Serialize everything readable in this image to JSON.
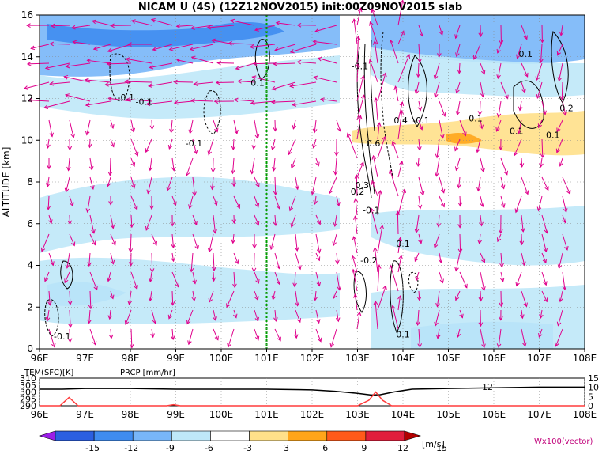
{
  "title": "NICAM U (4S) (12Z12NOV2015) init:00Z09NOV2015 slab",
  "colors": {
    "vector": "#e0008c",
    "marker_line": "#00a000",
    "temp_line": "#000000",
    "precip_line": "#ff3b3b"
  },
  "chart_data": [
    {
      "type": "heatmap",
      "title": "NICAM U (4S) (12Z12NOV2015) init:00Z09NOV2015 slab",
      "xlabel": "",
      "ylabel": "ALTITUDE [km]",
      "xlim": [
        96,
        108
      ],
      "ylim": [
        0,
        16
      ],
      "x_ticks": [
        "96E",
        "97E",
        "98E",
        "99E",
        "100E",
        "101E",
        "102E",
        "103E",
        "104E",
        "105E",
        "106E",
        "107E",
        "108E"
      ],
      "y_ticks": [
        "0",
        "2",
        "4",
        "6",
        "8",
        "10",
        "12",
        "14",
        "16"
      ],
      "marker_longitude": 101,
      "contour_labels": [
        {
          "text": "0.1",
          "x": 100.8,
          "y": 12.6
        },
        {
          "text": "-0.1",
          "x": 97.9,
          "y": 11.9
        },
        {
          "text": "-0.1",
          "x": 98.3,
          "y": 11.7
        },
        {
          "text": "-0.1",
          "x": 99.4,
          "y": 9.7
        },
        {
          "text": "-0.1",
          "x": 103.05,
          "y": 13.4
        },
        {
          "text": "0.1",
          "x": 106.7,
          "y": 14.0
        },
        {
          "text": "0.1",
          "x": 105.6,
          "y": 10.9
        },
        {
          "text": "0.2",
          "x": 107.6,
          "y": 11.4
        },
        {
          "text": "0.1",
          "x": 106.5,
          "y": 10.3
        },
        {
          "text": "0.1",
          "x": 107.3,
          "y": 10.1
        },
        {
          "text": "0.4",
          "x": 103.95,
          "y": 10.8
        },
        {
          "text": "-0.1",
          "x": 104.4,
          "y": 10.8
        },
        {
          "text": "0.6",
          "x": 103.35,
          "y": 9.7
        },
        {
          "text": "0.3",
          "x": 103.1,
          "y": 7.7
        },
        {
          "text": "0.2",
          "x": 103.0,
          "y": 7.4
        },
        {
          "text": "-0.1",
          "x": 103.3,
          "y": 6.5
        },
        {
          "text": "0.1",
          "x": 104.0,
          "y": 4.9
        },
        {
          "text": "-0.2",
          "x": 103.25,
          "y": 4.1
        },
        {
          "text": "0.1",
          "x": 104.0,
          "y": 0.55
        },
        {
          "text": "-0.1",
          "x": 96.5,
          "y": 0.45
        }
      ]
    },
    {
      "type": "line",
      "xlim": [
        96,
        108
      ],
      "left_label": "TEM(SFC)[K]",
      "right_label": "PRCP [mm/hr]",
      "left_ticks": [
        "310",
        "305",
        "300",
        "295",
        "290"
      ],
      "right_ticks": [
        "15",
        "10",
        "5",
        "0"
      ],
      "ylim_temp": [
        290,
        310
      ],
      "ylim_prcp": [
        0,
        15
      ],
      "series": [
        {
          "values_x": [
            96,
            96.5,
            97,
            97.5,
            98,
            99,
            100,
            101,
            102,
            102.5,
            103,
            103.3,
            103.5,
            103.8,
            104.2,
            105,
            106,
            107,
            108
          ],
          "values": [
            302.0,
            302.0,
            302.5,
            302.5,
            302.5,
            302.0,
            302.0,
            302.0,
            301.5,
            300.5,
            299.0,
            297.8,
            298.0,
            300.0,
            302.0,
            302.5,
            303.0,
            303.5,
            303.5
          ]
        },
        {
          "values_x": [
            96,
            96.45,
            96.65,
            96.85,
            97,
            98.8,
            98.95,
            99.1,
            103,
            103.25,
            103.4,
            103.55,
            103.75,
            108
          ],
          "values": [
            0,
            0,
            4.5,
            0,
            0,
            0,
            0.6,
            0,
            0,
            3.0,
            7.5,
            3.0,
            0,
            0
          ]
        }
      ],
      "annotation": "12"
    },
    {
      "type": "table",
      "colorbar_labels": [
        "-15",
        "-12",
        "-9",
        "-6",
        "-3",
        "3",
        "6",
        "9",
        "12",
        "15"
      ],
      "colorbar_colors": [
        "#9a1ee6",
        "#2b5fe0",
        "#3f8cf0",
        "#78b6f8",
        "#bfe8f8",
        "#ffffff",
        "#ffe08a",
        "#ffa51a",
        "#ff5a1a",
        "#e01e3c",
        "#b20000"
      ],
      "units": "[m/s]",
      "vector_label": "Wx100(vector)"
    }
  ]
}
